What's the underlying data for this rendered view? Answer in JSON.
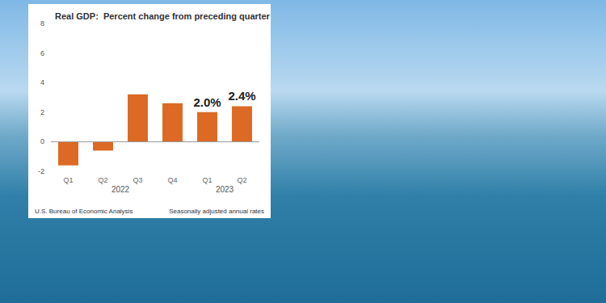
{
  "chart_data": {
    "type": "bar",
    "title": "Real GDP:  Percent change from preceding quarter",
    "categories": [
      "Q1",
      "Q2",
      "Q3",
      "Q4",
      "Q1",
      "Q2"
    ],
    "values": [
      -1.6,
      -0.6,
      3.2,
      2.6,
      2.0,
      2.4
    ],
    "value_labels": [
      null,
      null,
      null,
      null,
      "2.0%",
      "2.4%"
    ],
    "x_groups": [
      {
        "label": "2022",
        "count": 4
      },
      {
        "label": "2023",
        "count": 2
      }
    ],
    "color": "#dc6a24",
    "ylim": [
      -2,
      8
    ],
    "yticks": [
      -2,
      0,
      2,
      4,
      6,
      8
    ],
    "grid": false,
    "source": "U.S. Bureau of Economic Analysis",
    "note": "Seasonally adjusted annual rates"
  }
}
